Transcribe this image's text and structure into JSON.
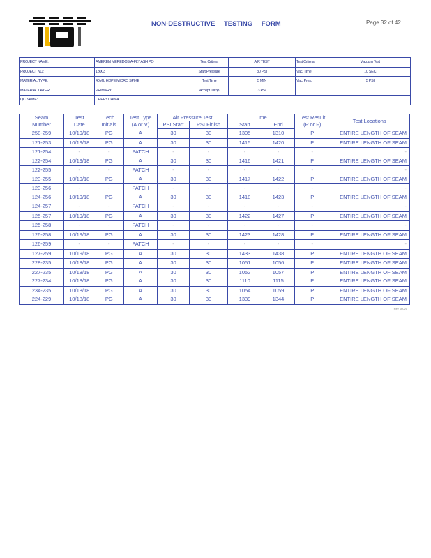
{
  "header": {
    "title": "NON-DESTRUCTIVE TESTING FORM",
    "page": "Page 32 of 42"
  },
  "info": {
    "project_name_label": "PROJECT NAME:",
    "project_name": "AMEREN MEREDOSIA-FLY ASH PO",
    "project_no_label": "PROJECT NO:",
    "project_no": "18003",
    "material_type_label": "MATERIAL TYPE:",
    "material_type": "40MIL HDPE MICRO SPIKE",
    "material_layer_label": "MATERIAL LAYER:",
    "material_layer": "PRIMARY",
    "qc_name_label": "QC NAME:",
    "qc_name": "CHERYL HINA",
    "test_criteria_label": "Test Criteria",
    "test_criteria": "AIR TEST",
    "start_pressure_label": "Start Pressure",
    "start_pressure": "30 PSI",
    "test_time_label": "Test Time",
    "test_time": "5 MIN",
    "accept_drop_label": "Accept. Drop",
    "accept_drop": "3 PSI",
    "test_criteria2_label": "Test Criteria",
    "test_criteria2": "Vacuum Test",
    "vac_time_label": "Vac. Time",
    "vac_time": "10 SEC",
    "vac_pres_label": "Vac. Pres.",
    "vac_pres": "5 PSI"
  },
  "columns": {
    "seam": "Seam Number",
    "date": "Test Date",
    "tech": "Tech Initials",
    "type": "Test Type (A or V)",
    "air": "Air Pressure Test",
    "psi_start": "PSI Start",
    "psi_finish": "PSI Finish",
    "time": "Time",
    "start": "Start",
    "end": "End",
    "result": "Test Result (P or F)",
    "loc": "Test Locations"
  },
  "rows": [
    [
      "258-259",
      "10/19/18",
      "PG",
      "A",
      "30",
      "30",
      "1305",
      "1310",
      "P",
      "ENTIRE LENGTH OF SEAM"
    ],
    [
      "121-253",
      "10/19/18",
      "PG",
      "A",
      "30",
      "30",
      "1415",
      "1420",
      "P",
      "ENTIRE LENGTH OF SEAM"
    ],
    [
      "121-254",
      "-",
      "-",
      "PATCH",
      "-",
      "-",
      "-",
      "-",
      "-",
      "-"
    ],
    [
      "122-254",
      "10/19/18",
      "PG",
      "A",
      "30",
      "30",
      "1416",
      "1421",
      "P",
      "ENTIRE LENGTH OF SEAM"
    ],
    [
      "122-255",
      "-",
      "-",
      "PATCH",
      "-",
      "-",
      "-",
      "-",
      "-",
      "-"
    ],
    [
      "123-255",
      "10/19/18",
      "PG",
      "A",
      "30",
      "30",
      "1417",
      "1422",
      "P",
      "ENTIRE LENGTH OF SEAM"
    ],
    [
      "123-256",
      "-",
      "-",
      "PATCH",
      "-",
      "-",
      "-",
      "-",
      "-",
      "-"
    ],
    [
      "124-256",
      "10/19/18",
      "PG",
      "A",
      "30",
      "30",
      "1418",
      "1423",
      "P",
      "ENTIRE LENGTH OF SEAM"
    ],
    [
      "124-257",
      "-",
      "-",
      "PATCH",
      "-",
      "-",
      "-",
      "-",
      "-",
      "-"
    ],
    [
      "125-257",
      "10/19/18",
      "PG",
      "A",
      "30",
      "30",
      "1422",
      "1427",
      "P",
      "ENTIRE LENGTH OF SEAM"
    ],
    [
      "125-258",
      "-",
      "-",
      "PATCH",
      "-",
      "-",
      "-",
      "-",
      "-",
      "-"
    ],
    [
      "126-258",
      "10/19/18",
      "PG",
      "A",
      "30",
      "30",
      "1423",
      "1428",
      "P",
      "ENTIRE LENGTH OF SEAM"
    ],
    [
      "126-259",
      "-",
      "-",
      "PATCH",
      "-",
      "-",
      "-",
      "-",
      "-",
      "-"
    ],
    [
      "127-259",
      "10/19/18",
      "PG",
      "A",
      "30",
      "30",
      "1433",
      "1438",
      "P",
      "ENTIRE LENGTH OF SEAM"
    ],
    [
      "228-235",
      "10/18/18",
      "PG",
      "A",
      "30",
      "30",
      "1051",
      "1056",
      "P",
      "ENTIRE LENGTH OF SEAM"
    ],
    [
      "227-235",
      "10/18/18",
      "PG",
      "A",
      "30",
      "30",
      "1052",
      "1057",
      "P",
      "ENTIRE LENGTH OF SEAM"
    ],
    [
      "227-234",
      "10/18/18",
      "PG",
      "A",
      "30",
      "30",
      "1110",
      "1115",
      "P",
      "ENTIRE LENGTH OF SEAM"
    ],
    [
      "234-235",
      "10/18/18",
      "PG",
      "A",
      "30",
      "30",
      "1054",
      "1059",
      "P",
      "ENTIRE LENGTH OF SEAM"
    ],
    [
      "224-229",
      "10/18/18",
      "PG",
      "A",
      "30",
      "30",
      "1339",
      "1344",
      "P",
      "ENTIRE LENGTH OF SEAM"
    ]
  ],
  "footer": {
    "rev": "Rev 16020"
  }
}
